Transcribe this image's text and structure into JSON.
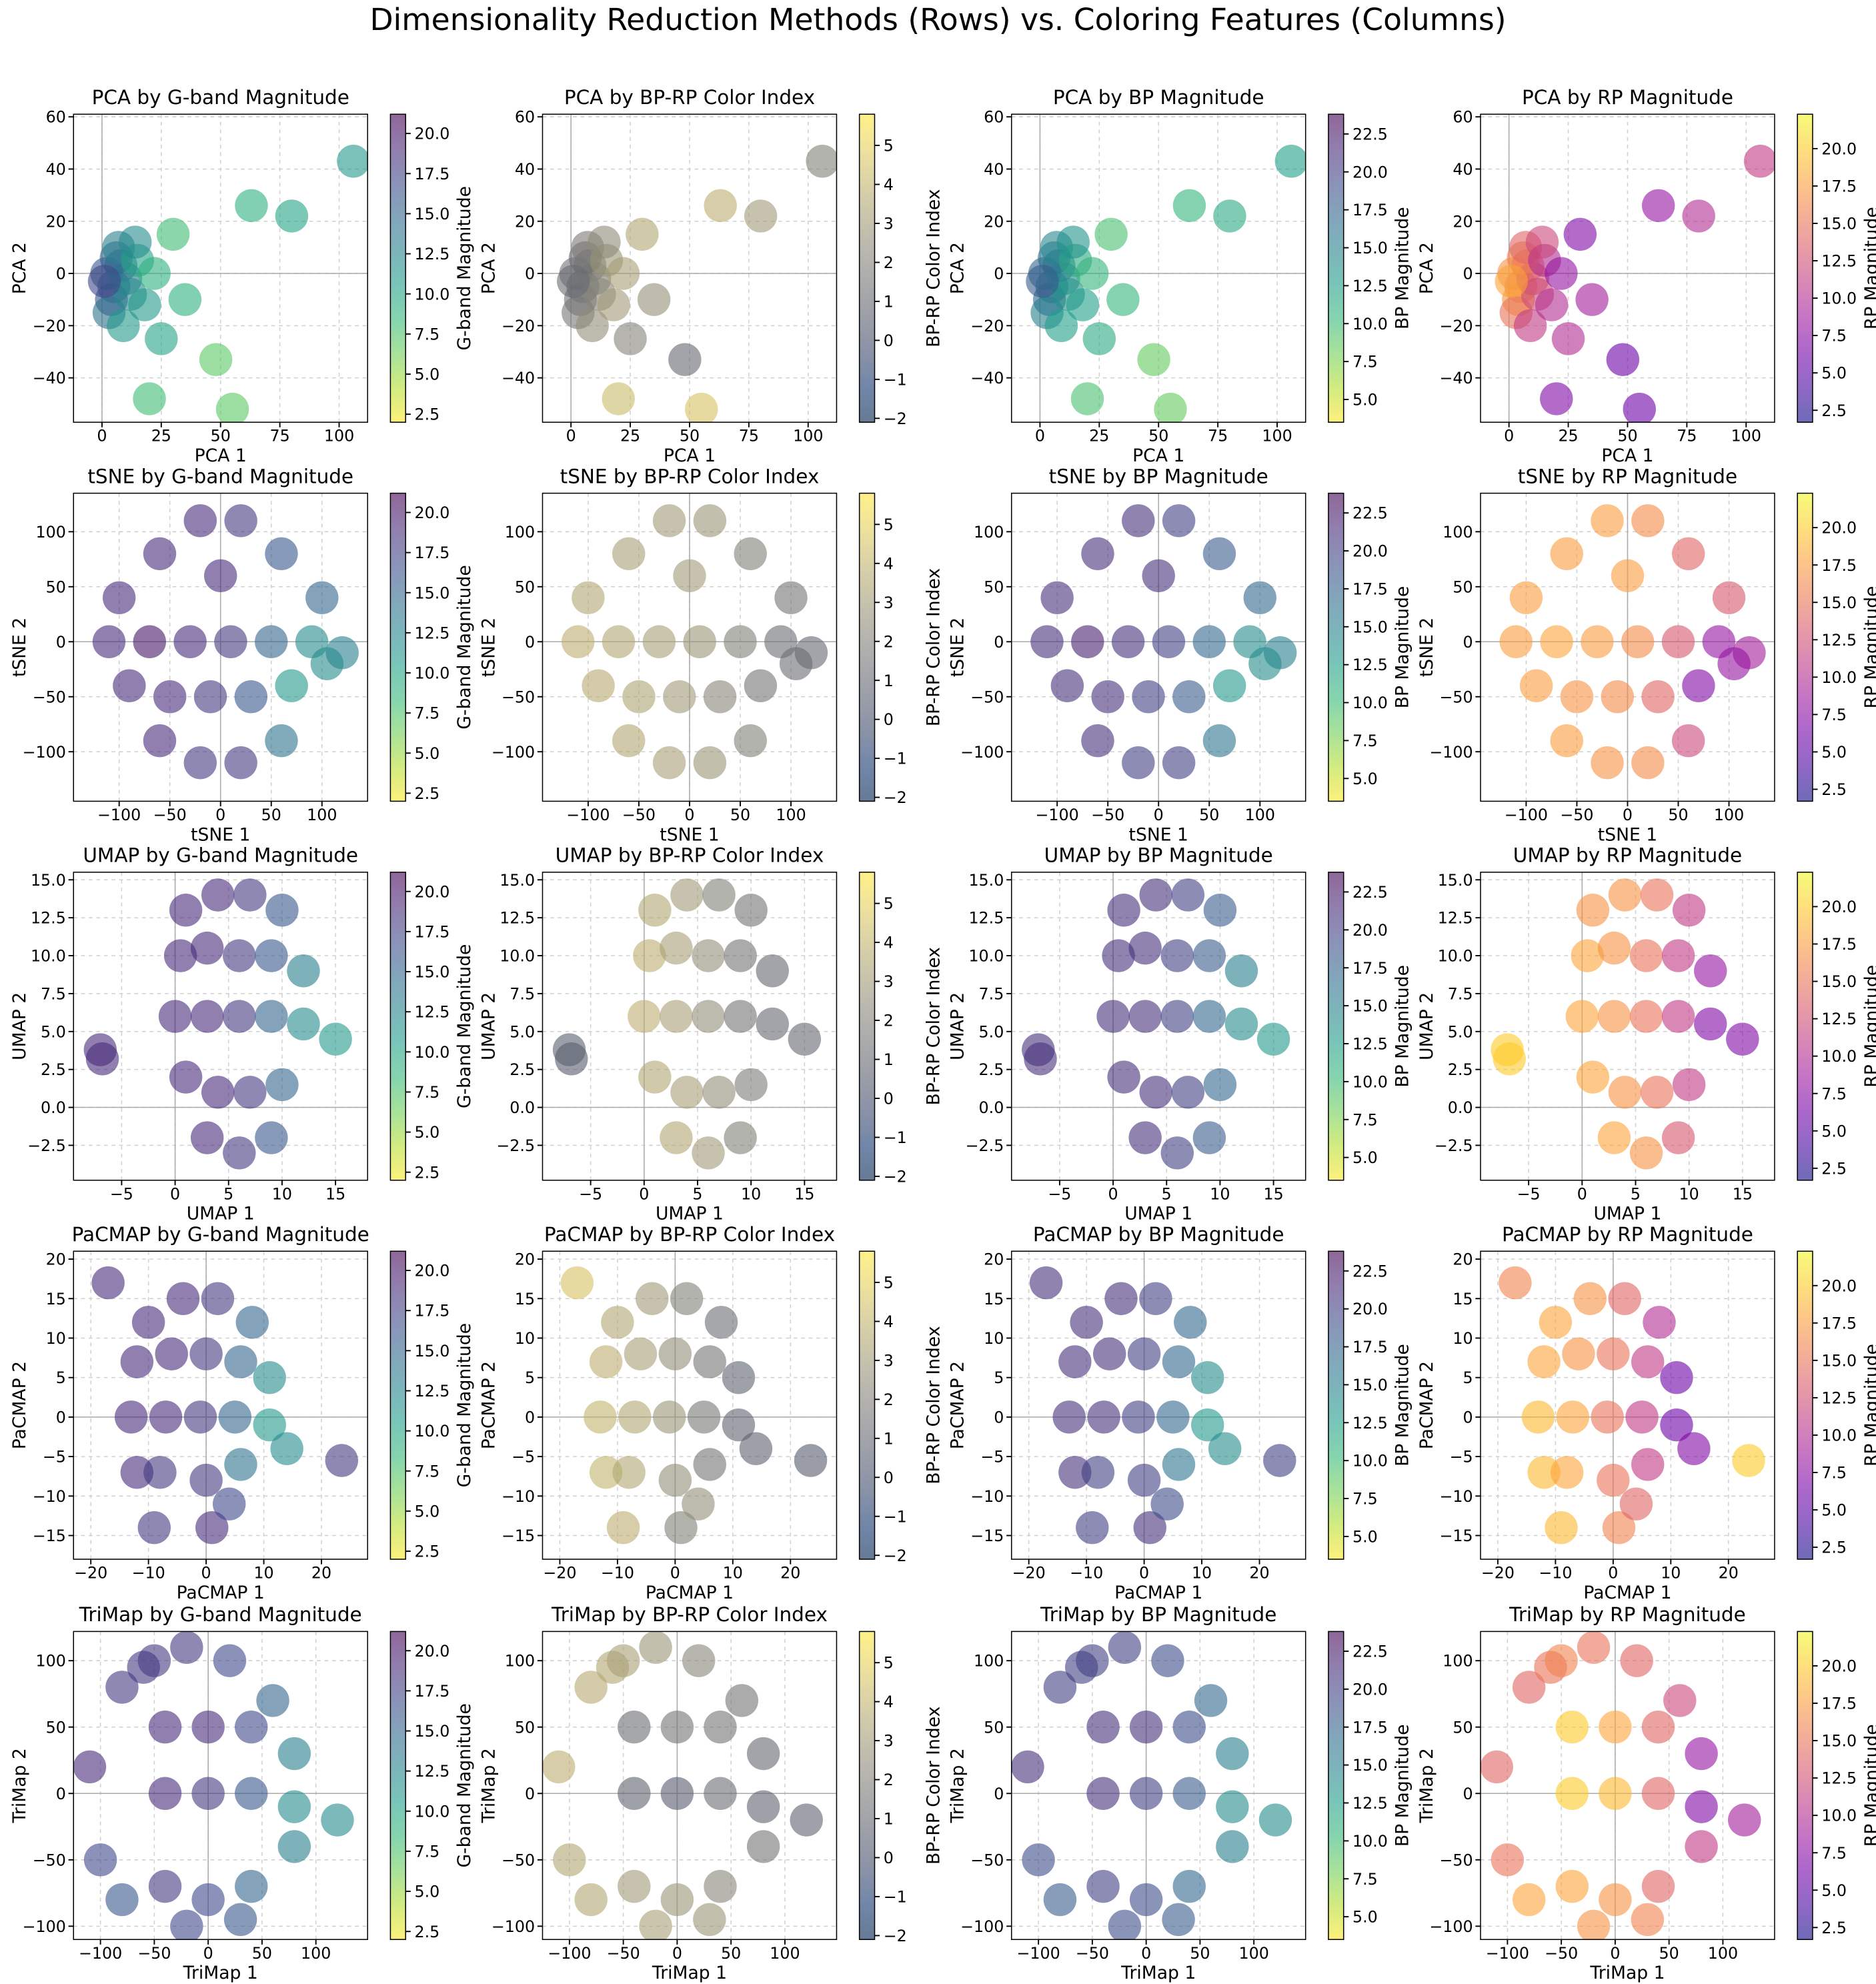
{
  "title": "Dimensionality Reduction Methods (Rows) vs. Coloring Features (Columns)",
  "colorbars": [
    {
      "label": "G-band Magnitude",
      "colormap": "viridis_r",
      "clim": [
        2,
        21.2
      ],
      "cticks": [
        2.5,
        {
          "value": 5,
          "label": "5.0"
        },
        7.5,
        {
          "value": 10,
          "label": "10.0"
        },
        12.5,
        {
          "value": 15,
          "label": "15.0"
        },
        17.5,
        {
          "value": 20,
          "label": "20.0"
        }
      ]
    },
    {
      "label": "BP-RP Color Index",
      "colormap": "cividis",
      "clim": [
        -2.1,
        5.8
      ],
      "cticks": [
        {
          "value": -2,
          "label": "−2"
        },
        {
          "value": -1,
          "label": "−1"
        },
        0,
        1,
        2,
        3,
        4,
        5
      ]
    },
    {
      "label": "BP Magnitude",
      "colormap": "viridis_r",
      "clim": [
        3.5,
        23.8
      ],
      "cticks": [
        {
          "value": 5,
          "label": "5.0"
        },
        7.5,
        {
          "value": 10,
          "label": "10.0"
        },
        12.5,
        {
          "value": 15,
          "label": "15.0"
        },
        17.5,
        {
          "value": 20,
          "label": "20.0"
        },
        22.5
      ]
    },
    {
      "label": "RP Magnitude",
      "colormap": "plasma",
      "clim": [
        1.7,
        22.3
      ],
      "cticks": [
        2.5,
        {
          "value": 5,
          "label": "5.0"
        },
        7.5,
        {
          "value": 10,
          "label": "10.0"
        },
        12.5,
        {
          "value": 15,
          "label": "15.0"
        },
        17.5,
        {
          "value": 20,
          "label": "20.0"
        }
      ]
    }
  ],
  "chart_data": [
    {
      "type": "scatter",
      "grid": true,
      "zero_lines": true,
      "titles": [
        "PCA by G-band Magnitude",
        "PCA by BP-RP Color Index",
        "PCA by BP Magnitude",
        "PCA by RP Magnitude"
      ],
      "xlabel": "PCA 1",
      "ylabel": "PCA 2",
      "xlim": [
        -12,
        112
      ],
      "xticks": [
        0,
        25,
        50,
        75,
        100
      ],
      "ylim": [
        -57,
        61
      ],
      "yticks": [
        {
          "value": -40,
          "label": "−40"
        },
        {
          "value": -20,
          "label": "−20"
        },
        0,
        20,
        40,
        60
      ],
      "x": [
        2,
        5,
        8,
        4,
        10,
        6,
        3,
        12,
        7,
        1,
        9,
        15,
        18,
        14,
        22,
        25,
        30,
        35,
        20,
        48,
        55,
        63,
        80,
        106
      ],
      "y": [
        0,
        -5,
        3,
        -10,
        -2,
        6,
        -15,
        -8,
        10,
        -3,
        -20,
        5,
        -12,
        12,
        0,
        -25,
        15,
        -10,
        -48,
        -33,
        -52,
        26,
        22,
        43
      ],
      "colors": [
        [
          16,
          15,
          14,
          16,
          13,
          15,
          14,
          12,
          13,
          17,
          11,
          10,
          11,
          12,
          9,
          10,
          8,
          9,
          8,
          7,
          7,
          9,
          10,
          11
        ],
        [
          1.5,
          1.2,
          1.8,
          1.4,
          2,
          1.3,
          1.6,
          2.2,
          1.7,
          1.1,
          2.5,
          2.8,
          3,
          2.4,
          3.2,
          2.1,
          3.5,
          2.6,
          4.2,
          1,
          4.5,
          3.8,
          3,
          2
        ],
        [
          17,
          16,
          15.5,
          17,
          14,
          16,
          15,
          13.5,
          14.5,
          18,
          12.5,
          11.5,
          12.5,
          13.5,
          10.5,
          11.5,
          9.5,
          10.5,
          9.5,
          8.5,
          8.5,
          10.5,
          11.5,
          12.5
        ],
        [
          17,
          16,
          15,
          17,
          13,
          16,
          15,
          12,
          14,
          18,
          11,
          10,
          10,
          12,
          8,
          10,
          7,
          9,
          7,
          6,
          6,
          8,
          10,
          11
        ]
      ]
    },
    {
      "type": "scatter",
      "grid": true,
      "zero_lines": true,
      "titles": [
        "tSNE by G-band Magnitude",
        "tSNE by BP-RP Color Index",
        "tSNE by BP Magnitude",
        "tSNE by RP Magnitude"
      ],
      "xlabel": "tSNE 1",
      "ylabel": "tSNE 2",
      "xlim": [
        -145,
        145
      ],
      "xticks": [
        {
          "value": -100,
          "label": "−100"
        },
        {
          "value": -50,
          "label": "−50"
        },
        0,
        50,
        100
      ],
      "ylim": [
        -145,
        135
      ],
      "yticks": [
        {
          "value": -100,
          "label": "−100"
        },
        {
          "value": -50,
          "label": "−50"
        },
        0,
        50,
        100
      ],
      "x": [
        -100,
        -60,
        -20,
        20,
        60,
        100,
        -110,
        -70,
        -30,
        10,
        50,
        90,
        120,
        -90,
        -50,
        -10,
        30,
        70,
        105,
        -60,
        -20,
        20,
        60,
        0
      ],
      "y": [
        40,
        80,
        110,
        110,
        80,
        40,
        0,
        0,
        0,
        0,
        0,
        0,
        -10,
        -40,
        -50,
        -50,
        -50,
        -40,
        -20,
        -90,
        -110,
        -110,
        -90,
        60
      ],
      "colors": [
        [
          19,
          19,
          19,
          18,
          16,
          15,
          19,
          20,
          19,
          18,
          15,
          12,
          13,
          19,
          19,
          18,
          16,
          11,
          12,
          19,
          18,
          18,
          14,
          19
        ],
        [
          3.5,
          3.2,
          3,
          2.8,
          2,
          1.5,
          3.8,
          3.5,
          3.2,
          2.8,
          2,
          1.2,
          1,
          3.6,
          3.4,
          3,
          2.2,
          1.5,
          1.2,
          3.5,
          3.2,
          2.8,
          2,
          3
        ],
        [
          21,
          21,
          21,
          20,
          18,
          17,
          21,
          22,
          21,
          20,
          17,
          14,
          15,
          21,
          21,
          20,
          18,
          13,
          14,
          21,
          20,
          20,
          16,
          21
        ],
        [
          17.5,
          17.5,
          17.5,
          16.5,
          14,
          13,
          17.5,
          18,
          17.5,
          16.5,
          13,
          8,
          9,
          17.5,
          17,
          16.5,
          14,
          7,
          8,
          17.5,
          17,
          16.5,
          12,
          17.5
        ]
      ]
    },
    {
      "type": "scatter",
      "grid": true,
      "zero_lines": true,
      "titles": [
        "UMAP by G-band Magnitude",
        "UMAP by BP-RP Color Index",
        "UMAP by BP Magnitude",
        "UMAP by RP Magnitude"
      ],
      "xlabel": "UMAP 1",
      "ylabel": "UMAP 2",
      "xlim": [
        -9.5,
        18
      ],
      "xticks": [
        {
          "value": -5,
          "label": "−5"
        },
        0,
        5,
        10,
        15
      ],
      "ylim": [
        -4.8,
        15.5
      ],
      "yticks": [
        {
          "value": -2.5,
          "label": "−2.5"
        },
        {
          "value": 0,
          "label": "0.0"
        },
        2.5,
        {
          "value": 5,
          "label": "5.0"
        },
        7.5,
        {
          "value": 10,
          "label": "10.0"
        },
        12.5,
        {
          "value": 15,
          "label": "15.0"
        }
      ],
      "x": [
        -6.8,
        -7,
        1,
        4,
        7,
        10,
        0.5,
        3,
        6,
        9,
        12,
        0,
        3,
        6,
        9,
        12,
        15,
        1,
        4,
        7,
        10,
        3,
        6,
        9
      ],
      "y": [
        3.2,
        3.8,
        13,
        14,
        14,
        13,
        10,
        10.5,
        10,
        10,
        9,
        6,
        6,
        6,
        6,
        5.5,
        4.5,
        2,
        1,
        1,
        1.5,
        -2,
        -3,
        -2
      ],
      "colors": [
        [
          19,
          19,
          19,
          19,
          18,
          16,
          19,
          19,
          18,
          16,
          13,
          19,
          19,
          18,
          15,
          12,
          11,
          19,
          19,
          18,
          15,
          19,
          18,
          16
        ],
        [
          0.5,
          0.6,
          3.5,
          3,
          2,
          1.5,
          3.8,
          3.2,
          2.5,
          1.5,
          1,
          3.8,
          3.2,
          2.5,
          1.5,
          1,
          1,
          3.5,
          3.2,
          2.5,
          1.8,
          3.5,
          3,
          2
        ],
        [
          21,
          21,
          21,
          21,
          20,
          18,
          21,
          21,
          20,
          18,
          15,
          21,
          21,
          20,
          17,
          14,
          13,
          21,
          21,
          20,
          17,
          21,
          20,
          18
        ],
        [
          20,
          20,
          17,
          17,
          15,
          11,
          18,
          17,
          15,
          11,
          8,
          18,
          17,
          15,
          11,
          7,
          7,
          18,
          17,
          15,
          11,
          18,
          17,
          13
        ]
      ]
    },
    {
      "type": "scatter",
      "grid": true,
      "zero_lines": true,
      "titles": [
        "PaCMAP by G-band Magnitude",
        "PaCMAP by BP-RP Color Index",
        "PaCMAP by BP Magnitude",
        "PaCMAP by RP Magnitude"
      ],
      "xlabel": "PaCMAP 1",
      "ylabel": "PaCMAP 2",
      "xlim": [
        -23,
        28
      ],
      "xticks": [
        {
          "value": -20,
          "label": "−20"
        },
        {
          "value": -10,
          "label": "−10"
        },
        0,
        10,
        20
      ],
      "ylim": [
        -18,
        21
      ],
      "yticks": [
        {
          "value": -15,
          "label": "−15"
        },
        {
          "value": -10,
          "label": "−10"
        },
        {
          "value": -5,
          "label": "−5"
        },
        0,
        5,
        10,
        15,
        20
      ],
      "x": [
        -17,
        23.5,
        -10,
        -4,
        2,
        8,
        -12,
        -6,
        0,
        6,
        11,
        -13,
        -7,
        -1,
        5,
        11,
        14,
        -12,
        -8,
        0,
        6,
        -9,
        1,
        4
      ],
      "y": [
        17,
        -5.5,
        12,
        15,
        15,
        12,
        7,
        8,
        8,
        7,
        5,
        0,
        0,
        0,
        0,
        -1,
        -4,
        -7,
        -7,
        -8,
        -6,
        -14,
        -14,
        -11
      ],
      "colors": [
        [
          19,
          18,
          19,
          19,
          18,
          15,
          19,
          19,
          18,
          15,
          12,
          19,
          19,
          18,
          15,
          11,
          12,
          19,
          18,
          18,
          14,
          18,
          19,
          17
        ],
        [
          4.5,
          0.5,
          3.5,
          3,
          2,
          1.2,
          3.8,
          3.2,
          2.5,
          1.5,
          0.8,
          4,
          3.5,
          2.8,
          1.6,
          0.8,
          0.7,
          4,
          3.5,
          2.5,
          1.5,
          3.8,
          2,
          2.5
        ],
        [
          21,
          20,
          21,
          21,
          20,
          17,
          21,
          21,
          20,
          17,
          14,
          21,
          21,
          20,
          17,
          13,
          14,
          21,
          20,
          20,
          16,
          20,
          21,
          19
        ],
        [
          16,
          20,
          18,
          17,
          14,
          10,
          18,
          17,
          15,
          11,
          6,
          19,
          18,
          15,
          11,
          6,
          7,
          19,
          18,
          15,
          11,
          19,
          16,
          14
        ]
      ]
    },
    {
      "type": "scatter",
      "grid": true,
      "zero_lines": true,
      "titles": [
        "TriMap by G-band Magnitude",
        "TriMap by BP-RP Color Index",
        "TriMap by BP Magnitude",
        "TriMap by RP Magnitude"
      ],
      "xlabel": "TriMap 1",
      "ylabel": "TriMap 2",
      "xlim": [
        -125,
        148
      ],
      "xticks": [
        {
          "value": -100,
          "label": "−100"
        },
        {
          "value": -50,
          "label": "−50"
        },
        0,
        50,
        100
      ],
      "ylim": [
        -110,
        122
      ],
      "yticks": [
        {
          "value": -100,
          "label": "−100"
        },
        {
          "value": -50,
          "label": "−50"
        },
        0,
        50,
        100
      ],
      "x": [
        -110,
        -100,
        -80,
        -60,
        -50,
        -20,
        20,
        60,
        -40,
        0,
        40,
        80,
        -40,
        0,
        40,
        80,
        120,
        -80,
        -40,
        0,
        40,
        80,
        -20,
        30
      ],
      "y": [
        20,
        -50,
        80,
        95,
        100,
        110,
        100,
        70,
        50,
        50,
        50,
        30,
        0,
        0,
        0,
        -10,
        -20,
        -80,
        -70,
        -80,
        -70,
        -40,
        -100,
        -95
      ],
      "colors": [
        [
          19,
          17,
          18,
          18,
          18,
          18,
          17,
          15,
          19,
          19,
          17,
          13,
          19,
          18,
          16,
          12,
          12,
          16,
          18,
          17,
          15,
          13,
          17,
          16
        ],
        [
          3.8,
          3.5,
          3.6,
          3.5,
          3.2,
          2.8,
          2.2,
          1.5,
          1.2,
          1.5,
          1.5,
          1,
          0.8,
          0.5,
          1.2,
          0.8,
          0.8,
          3.5,
          3,
          2.8,
          2.2,
          1.5,
          3.2,
          2.8
        ],
        [
          21,
          19,
          20,
          20,
          20,
          20,
          19,
          17,
          21,
          21,
          19,
          15,
          21,
          20,
          18,
          14,
          14,
          18,
          20,
          19,
          17,
          15,
          19,
          18
        ],
        [
          14,
          15,
          14,
          15,
          16,
          15,
          14,
          12,
          20,
          18,
          14,
          8,
          20,
          19,
          14,
          7,
          9,
          18,
          18,
          17,
          14,
          11,
          17,
          16
        ]
      ]
    }
  ]
}
